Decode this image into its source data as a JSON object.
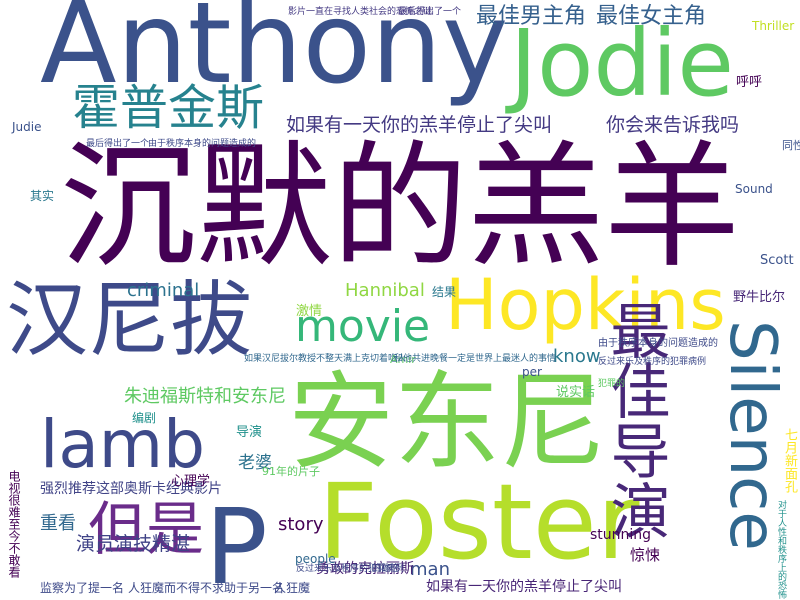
{
  "colors": {
    "background": "#ffffff",
    "palette": [
      "#440154",
      "#3b528b",
      "#21918c",
      "#5ec962",
      "#fde725"
    ]
  },
  "words": [
    {
      "text": "沉默的羔羊",
      "color": "#440154"
    },
    {
      "text": "Anthony",
      "color": "#3b528b"
    },
    {
      "text": "Jodie",
      "color": "#5ec962"
    },
    {
      "text": "安东尼",
      "color": "#7ad151"
    },
    {
      "text": "Foster",
      "color": "#b5de2b"
    },
    {
      "text": "汉尼拔",
      "color": "#3e4a89"
    },
    {
      "text": "Hopkins",
      "color": "#fde725"
    },
    {
      "text": "Silence",
      "color": "#31688e"
    },
    {
      "text": "最佳导演",
      "color": "#482878"
    },
    {
      "text": "P",
      "color": "#3b528b"
    },
    {
      "text": "霍普金斯",
      "color": "#26828e"
    },
    {
      "text": "lamb",
      "color": "#3e4a89"
    },
    {
      "text": "movie",
      "color": "#35b779"
    },
    {
      "text": "但是",
      "color": "#6a2c8a"
    },
    {
      "text": "最佳男主角",
      "color": "#35608d"
    },
    {
      "text": "最佳女主角",
      "color": "#35608d"
    },
    {
      "text": "如果有一天你的羔羊停止了尖叫",
      "color": "#443a83"
    },
    {
      "text": "你会来告诉我吗",
      "color": "#443a83"
    },
    {
      "text": "Hannibal",
      "color": "#90d743"
    },
    {
      "text": "criminal",
      "color": "#2c728e"
    },
    {
      "text": "朱迪",
      "color": "#5ec962"
    },
    {
      "text": "福斯特和安东尼",
      "color": "#5ec962"
    },
    {
      "text": "演员演技精湛",
      "color": "#404387"
    },
    {
      "text": "重看",
      "color": "#31688e"
    },
    {
      "text": "强烈推荐这部奥斯卡经典影片",
      "color": "#414487"
    },
    {
      "text": "story",
      "color": "#440154"
    },
    {
      "text": "man",
      "color": "#3b528b"
    },
    {
      "text": "know",
      "color": "#2a788e"
    },
    {
      "text": "老婆",
      "color": "#2c728e"
    },
    {
      "text": "勇敢的克拉丽斯",
      "color": "#482576"
    },
    {
      "text": "如果有一天你的羔羊停止了尖叫",
      "color": "#482576"
    },
    {
      "text": "监察为了提一名",
      "color": "#3e4a89"
    },
    {
      "text": "人狂魔而不得不求助于另一名",
      "color": "#3e4a89"
    },
    {
      "text": "人狂魔",
      "color": "#3e4a89"
    },
    {
      "text": "反过来乐及秩序的犯罪病例",
      "color": "#3e4a89"
    },
    {
      "text": "的雄伦",
      "color": "#3e4a89"
    },
    {
      "text": "stunning",
      "color": "#440154"
    },
    {
      "text": "惊悚",
      "color": "#440154"
    },
    {
      "text": "呼呼",
      "color": "#440154"
    },
    {
      "text": "野牛比尔",
      "color": "#482878"
    },
    {
      "text": "Scott",
      "color": "#3b528b"
    },
    {
      "text": "Sound",
      "color": "#3b528b"
    },
    {
      "text": "Thriller",
      "color": "#c2df23"
    },
    {
      "text": "七月新面孔",
      "color": "#fde725"
    },
    {
      "text": "导演",
      "color": "#21918c"
    },
    {
      "text": "编剧",
      "color": "#21918c"
    },
    {
      "text": "心理学",
      "color": "#440154"
    },
    {
      "text": "说实话",
      "color": "#5ec962"
    },
    {
      "text": "激情",
      "color": "#90d743"
    },
    {
      "text": "结果",
      "color": "#2a788e"
    },
    {
      "text": "其实",
      "color": "#2a788e"
    },
    {
      "text": "Judie",
      "color": "#3b528b"
    },
    {
      "text": "Amir",
      "color": "#5ec962"
    },
    {
      "text": "people",
      "color": "#31688e"
    },
    {
      "text": "per",
      "color": "#3b528b"
    },
    {
      "text": "91年的片子",
      "color": "#5ec962"
    },
    {
      "text": "电视很难至今不敢看",
      "color": "#440154"
    },
    {
      "text": "由于秩序本身的问题造成的",
      "color": "#3e4a89"
    },
    {
      "text": "反过来乐及秩序的犯罪病例",
      "color": "#3e4a89"
    },
    {
      "text": "影片一直在寻找人类社会的恐怖之谜",
      "color": "#443a83"
    },
    {
      "text": "最后得出了一个",
      "color": "#443a83"
    },
    {
      "text": "最后得出了一个",
      "color": "#3e4a89"
    },
    {
      "text": "由于秩序本身的问题造成的",
      "color": "#3e4a89"
    },
    {
      "text": "如果汉尼拔尔教授不整天满上克切着吃人",
      "color": "#31688e"
    },
    {
      "text": "和他共进晚餐一定是世界上最迷人的事情",
      "color": "#31688e"
    },
    {
      "text": "对于人性和秩序上的恐怖",
      "color": "#21918c"
    },
    {
      "text": "同性",
      "color": "#3b528b"
    },
    {
      "text": "犯罪的",
      "color": "#5ec962"
    }
  ]
}
